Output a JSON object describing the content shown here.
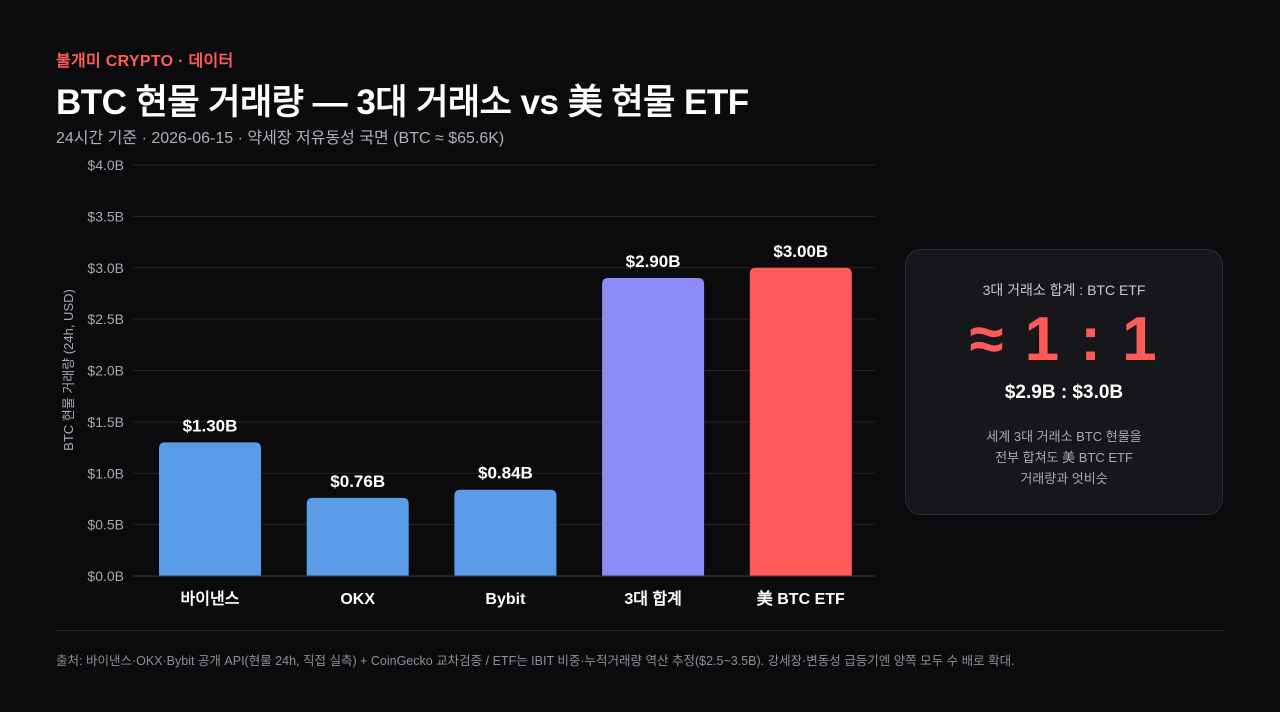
{
  "header": {
    "brand": "불개미 CRYPTO · 데이터",
    "title": "BTC 현물 거래량 — 3대 거래소 vs 美 현물 ETF",
    "subtitle": "24시간 기준 · 2026-06-15 · 약세장 저유동성 국면 (BTC ≈ $65.6K)"
  },
  "chart_data": {
    "type": "bar",
    "categories": [
      "바이낸스",
      "OKX",
      "Bybit",
      "3대 합계",
      "美 BTC ETF"
    ],
    "values": [
      1.3,
      0.76,
      0.84,
      2.9,
      3.0
    ],
    "value_labels": [
      "$1.30B",
      "$0.76B",
      "$0.84B",
      "$2.90B",
      "$3.00B"
    ],
    "bar_colors": [
      "#5b9ce9",
      "#5b9ce9",
      "#5b9ce9",
      "#8b8cf7",
      "#ff5a5a"
    ],
    "ylabel": "BTC 현물 거래량 (24h, USD)",
    "ylim": [
      0,
      4.0
    ],
    "yticks": [
      0,
      0.5,
      1.0,
      1.5,
      2.0,
      2.5,
      3.0,
      3.5,
      4.0
    ],
    "ytick_labels": [
      "$0.0B",
      "$0.5B",
      "$1.0B",
      "$1.5B",
      "$2.0B",
      "$2.5B",
      "$3.0B",
      "$3.5B",
      "$4.0B"
    ],
    "grid": true
  },
  "callout": {
    "label": "3대 거래소 합계 : BTC ETF",
    "ratio": "≈ 1 : 1",
    "values": "$2.9B : $3.0B",
    "note_lines": [
      "세계 3대 거래소 BTC 현물을",
      "전부 합쳐도 美 BTC ETF",
      "거래량과 엇비슷"
    ]
  },
  "footer": {
    "source": "출처: 바이낸스·OKX·Bybit 공개 API(현물 24h, 직접 실측) + CoinGecko 교차검증 / ETF는 IBIT 비중·누적거래량 역산 추정($2.5~3.5B). 강세장·변동성 급등기엔 양쪽 모두 수 배로 확대."
  },
  "colors": {
    "background": "#0b0b0d",
    "accent": "#ff5a5a",
    "exchange_bar": "#5b9ce9",
    "combined_bar": "#8b8cf7"
  }
}
